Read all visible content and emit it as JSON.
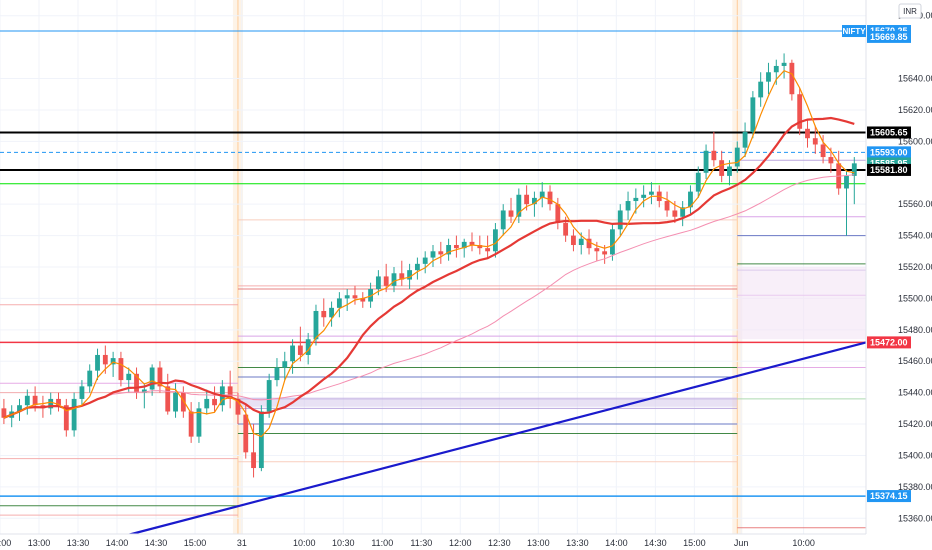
{
  "chart_data": {
    "type": "candlestick",
    "currency": "INR",
    "symbol_tag": "NIFTY",
    "ylim": [
      15350,
      15690
    ],
    "xlim": [
      0,
      111
    ],
    "y_ticks": [
      "15680.00",
      "15640.00",
      "15620.00",
      "15600.00",
      "15560.00",
      "15540.00",
      "15520.00",
      "15500.00",
      "15480.00",
      "15460.00",
      "15440.00",
      "15420.00",
      "15400.00",
      "15380.00",
      "15360.00"
    ],
    "y_tick_values": [
      15680,
      15640,
      15620,
      15600,
      15560,
      15540,
      15520,
      15500,
      15480,
      15460,
      15440,
      15420,
      15400,
      15380,
      15360
    ],
    "x_ticks": [
      {
        "label": "12:00",
        "x": 0
      },
      {
        "label": "13:00",
        "x": 5
      },
      {
        "label": "13:30",
        "x": 10
      },
      {
        "label": "14:00",
        "x": 15
      },
      {
        "label": "14:30",
        "x": 20
      },
      {
        "label": "15:00",
        "x": 25
      },
      {
        "label": "31",
        "x": 31
      },
      {
        "label": "10:00",
        "x": 39
      },
      {
        "label": "10:30",
        "x": 44
      },
      {
        "label": "11:00",
        "x": 49
      },
      {
        "label": "11:30",
        "x": 54
      },
      {
        "label": "12:00",
        "x": 59
      },
      {
        "label": "12:30",
        "x": 64
      },
      {
        "label": "13:00",
        "x": 69
      },
      {
        "label": "13:30",
        "x": 74
      },
      {
        "label": "14:00",
        "x": 79
      },
      {
        "label": "14:30",
        "x": 84
      },
      {
        "label": "15:00",
        "x": 89
      },
      {
        "label": "Jun",
        "x": 95
      },
      {
        "label": "10:00",
        "x": 103
      }
    ],
    "session_breaks": [
      30.5,
      94.5
    ],
    "price_tags": [
      {
        "label": "15670.25",
        "value": 15670.25,
        "color": "#2196f3",
        "text_color": "#ffffff"
      },
      {
        "label": "15669.85",
        "value": 15666.5,
        "color": "#2196f3",
        "text_color": "#ffffff"
      },
      {
        "label": "15605.65",
        "value": 15605.65,
        "color": "#000000",
        "text_color": "#ffffff"
      },
      {
        "label": "15593.00",
        "value": 15593.0,
        "color": "#2196f3",
        "text_color": "#ffffff"
      },
      {
        "label": "15585.95",
        "value": 15585.95,
        "color": "#26a69a",
        "text_color": "#ffffff"
      },
      {
        "label": "15581.80",
        "value": 15581.8,
        "color": "#000000",
        "text_color": "#ffffff"
      },
      {
        "label": "15472.00",
        "value": 15472.0,
        "color": "#f23645",
        "text_color": "#ffffff"
      },
      {
        "label": "15374.15",
        "value": 15374.15,
        "color": "#2196f3",
        "text_color": "#ffffff"
      }
    ],
    "levels": [
      {
        "value": 15670.25,
        "color": "#2196f3",
        "width": 1,
        "dash": false,
        "from": 0
      },
      {
        "value": 15605.65,
        "color": "#000000",
        "width": 2,
        "dash": false,
        "from": 0
      },
      {
        "value": 15593.0,
        "color": "#2196f3",
        "width": 1,
        "dash": true,
        "from": 0
      },
      {
        "value": 15581.8,
        "color": "#000000",
        "width": 2,
        "dash": false,
        "from": 0
      },
      {
        "value": 15573.0,
        "color": "#00e600",
        "width": 1,
        "dash": false,
        "from": 0
      },
      {
        "value": 15472.0,
        "color": "#f23645",
        "width": 1.5,
        "dash": false,
        "from": 0
      },
      {
        "value": 15374.15,
        "color": "#2196f3",
        "width": 1.5,
        "dash": false,
        "from": 0
      }
    ],
    "candles": [
      {
        "o": 15430,
        "h": 15436,
        "l": 15420,
        "c": 15424
      },
      {
        "o": 15424,
        "h": 15432,
        "l": 15418,
        "c": 15428
      },
      {
        "o": 15428,
        "h": 15436,
        "l": 15422,
        "c": 15432
      },
      {
        "o": 15432,
        "h": 15442,
        "l": 15426,
        "c": 15438
      },
      {
        "o": 15438,
        "h": 15444,
        "l": 15428,
        "c": 15432
      },
      {
        "o": 15432,
        "h": 15438,
        "l": 15424,
        "c": 15430
      },
      {
        "o": 15430,
        "h": 15440,
        "l": 15426,
        "c": 15436
      },
      {
        "o": 15436,
        "h": 15440,
        "l": 15428,
        "c": 15432
      },
      {
        "o": 15432,
        "h": 15436,
        "l": 15412,
        "c": 15416
      },
      {
        "o": 15416,
        "h": 15440,
        "l": 15412,
        "c": 15436
      },
      {
        "o": 15436,
        "h": 15448,
        "l": 15432,
        "c": 15444
      },
      {
        "o": 15444,
        "h": 15458,
        "l": 15440,
        "c": 15454
      },
      {
        "o": 15454,
        "h": 15468,
        "l": 15448,
        "c": 15464
      },
      {
        "o": 15464,
        "h": 15470,
        "l": 15452,
        "c": 15458
      },
      {
        "o": 15458,
        "h": 15466,
        "l": 15450,
        "c": 15462
      },
      {
        "o": 15462,
        "h": 15466,
        "l": 15444,
        "c": 15448
      },
      {
        "o": 15448,
        "h": 15456,
        "l": 15440,
        "c": 15452
      },
      {
        "o": 15452,
        "h": 15456,
        "l": 15436,
        "c": 15440
      },
      {
        "o": 15440,
        "h": 15446,
        "l": 15430,
        "c": 15442
      },
      {
        "o": 15442,
        "h": 15458,
        "l": 15438,
        "c": 15456
      },
      {
        "o": 15456,
        "h": 15460,
        "l": 15440,
        "c": 15444
      },
      {
        "o": 15444,
        "h": 15452,
        "l": 15426,
        "c": 15428
      },
      {
        "o": 15428,
        "h": 15446,
        "l": 15424,
        "c": 15440
      },
      {
        "o": 15440,
        "h": 15444,
        "l": 15424,
        "c": 15428
      },
      {
        "o": 15428,
        "h": 15434,
        "l": 15408,
        "c": 15412
      },
      {
        "o": 15412,
        "h": 15434,
        "l": 15408,
        "c": 15430
      },
      {
        "o": 15430,
        "h": 15442,
        "l": 15426,
        "c": 15436
      },
      {
        "o": 15436,
        "h": 15444,
        "l": 15428,
        "c": 15432
      },
      {
        "o": 15432,
        "h": 15448,
        "l": 15428,
        "c": 15444
      },
      {
        "o": 15444,
        "h": 15454,
        "l": 15430,
        "c": 15436
      },
      {
        "o": 15436,
        "h": 15440,
        "l": 15420,
        "c": 15426
      },
      {
        "o": 15426,
        "h": 15432,
        "l": 15398,
        "c": 15402
      },
      {
        "o": 15402,
        "h": 15420,
        "l": 15386,
        "c": 15392
      },
      {
        "o": 15392,
        "h": 15432,
        "l": 15390,
        "c": 15428
      },
      {
        "o": 15428,
        "h": 15452,
        "l": 15424,
        "c": 15448
      },
      {
        "o": 15448,
        "h": 15462,
        "l": 15444,
        "c": 15456
      },
      {
        "o": 15456,
        "h": 15466,
        "l": 15448,
        "c": 15460
      },
      {
        "o": 15460,
        "h": 15474,
        "l": 15452,
        "c": 15470
      },
      {
        "o": 15470,
        "h": 15482,
        "l": 15460,
        "c": 15464
      },
      {
        "o": 15464,
        "h": 15478,
        "l": 15458,
        "c": 15474
      },
      {
        "o": 15474,
        "h": 15496,
        "l": 15470,
        "c": 15492
      },
      {
        "o": 15492,
        "h": 15500,
        "l": 15482,
        "c": 15488
      },
      {
        "o": 15488,
        "h": 15498,
        "l": 15482,
        "c": 15494
      },
      {
        "o": 15494,
        "h": 15504,
        "l": 15488,
        "c": 15500
      },
      {
        "o": 15500,
        "h": 15506,
        "l": 15492,
        "c": 15502
      },
      {
        "o": 15502,
        "h": 15508,
        "l": 15496,
        "c": 15500
      },
      {
        "o": 15500,
        "h": 15504,
        "l": 15494,
        "c": 15498
      },
      {
        "o": 15498,
        "h": 15510,
        "l": 15494,
        "c": 15506
      },
      {
        "o": 15506,
        "h": 15518,
        "l": 15502,
        "c": 15514
      },
      {
        "o": 15514,
        "h": 15522,
        "l": 15504,
        "c": 15508
      },
      {
        "o": 15508,
        "h": 15520,
        "l": 15504,
        "c": 15516
      },
      {
        "o": 15516,
        "h": 15524,
        "l": 15508,
        "c": 15512
      },
      {
        "o": 15512,
        "h": 15522,
        "l": 15506,
        "c": 15518
      },
      {
        "o": 15518,
        "h": 15526,
        "l": 15512,
        "c": 15522
      },
      {
        "o": 15522,
        "h": 15530,
        "l": 15516,
        "c": 15526
      },
      {
        "o": 15526,
        "h": 15534,
        "l": 15520,
        "c": 15530
      },
      {
        "o": 15530,
        "h": 15536,
        "l": 15522,
        "c": 15528
      },
      {
        "o": 15528,
        "h": 15538,
        "l": 15524,
        "c": 15534
      },
      {
        "o": 15534,
        "h": 15540,
        "l": 15526,
        "c": 15532
      },
      {
        "o": 15532,
        "h": 15538,
        "l": 15526,
        "c": 15536
      },
      {
        "o": 15536,
        "h": 15542,
        "l": 15530,
        "c": 15534
      },
      {
        "o": 15534,
        "h": 15540,
        "l": 15528,
        "c": 15532
      },
      {
        "o": 15532,
        "h": 15540,
        "l": 15526,
        "c": 15530
      },
      {
        "o": 15530,
        "h": 15548,
        "l": 15526,
        "c": 15544
      },
      {
        "o": 15544,
        "h": 15560,
        "l": 15540,
        "c": 15556
      },
      {
        "o": 15556,
        "h": 15564,
        "l": 15548,
        "c": 15552
      },
      {
        "o": 15552,
        "h": 15570,
        "l": 15548,
        "c": 15566
      },
      {
        "o": 15566,
        "h": 15572,
        "l": 15556,
        "c": 15560
      },
      {
        "o": 15560,
        "h": 15568,
        "l": 15552,
        "c": 15564
      },
      {
        "o": 15564,
        "h": 15574,
        "l": 15558,
        "c": 15568
      },
      {
        "o": 15568,
        "h": 15572,
        "l": 15556,
        "c": 15560
      },
      {
        "o": 15560,
        "h": 15564,
        "l": 15544,
        "c": 15548
      },
      {
        "o": 15548,
        "h": 15552,
        "l": 15536,
        "c": 15540
      },
      {
        "o": 15540,
        "h": 15544,
        "l": 15530,
        "c": 15534
      },
      {
        "o": 15534,
        "h": 15542,
        "l": 15528,
        "c": 15538
      },
      {
        "o": 15538,
        "h": 15544,
        "l": 15528,
        "c": 15532
      },
      {
        "o": 15532,
        "h": 15536,
        "l": 15524,
        "c": 15530
      },
      {
        "o": 15530,
        "h": 15534,
        "l": 15522,
        "c": 15528
      },
      {
        "o": 15528,
        "h": 15548,
        "l": 15524,
        "c": 15544
      },
      {
        "o": 15544,
        "h": 15560,
        "l": 15540,
        "c": 15556
      },
      {
        "o": 15556,
        "h": 15568,
        "l": 15550,
        "c": 15562
      },
      {
        "o": 15562,
        "h": 15570,
        "l": 15554,
        "c": 15564
      },
      {
        "o": 15564,
        "h": 15572,
        "l": 15558,
        "c": 15566
      },
      {
        "o": 15566,
        "h": 15574,
        "l": 15560,
        "c": 15568
      },
      {
        "o": 15568,
        "h": 15572,
        "l": 15558,
        "c": 15562
      },
      {
        "o": 15562,
        "h": 15568,
        "l": 15552,
        "c": 15556
      },
      {
        "o": 15556,
        "h": 15562,
        "l": 15548,
        "c": 15552
      },
      {
        "o": 15552,
        "h": 15562,
        "l": 15546,
        "c": 15558
      },
      {
        "o": 15558,
        "h": 15572,
        "l": 15554,
        "c": 15568
      },
      {
        "o": 15568,
        "h": 15584,
        "l": 15564,
        "c": 15580
      },
      {
        "o": 15580,
        "h": 15598,
        "l": 15576,
        "c": 15594
      },
      {
        "o": 15594,
        "h": 15606,
        "l": 15584,
        "c": 15588
      },
      {
        "o": 15588,
        "h": 15594,
        "l": 15574,
        "c": 15578
      },
      {
        "o": 15578,
        "h": 15588,
        "l": 15572,
        "c": 15584
      },
      {
        "o": 15584,
        "h": 15600,
        "l": 15580,
        "c": 15596
      },
      {
        "o": 15596,
        "h": 15612,
        "l": 15590,
        "c": 15606
      },
      {
        "o": 15606,
        "h": 15632,
        "l": 15602,
        "c": 15628
      },
      {
        "o": 15628,
        "h": 15644,
        "l": 15622,
        "c": 15638
      },
      {
        "o": 15638,
        "h": 15650,
        "l": 15630,
        "c": 15644
      },
      {
        "o": 15644,
        "h": 15652,
        "l": 15636,
        "c": 15648
      },
      {
        "o": 15648,
        "h": 15656,
        "l": 15640,
        "c": 15650
      },
      {
        "o": 15650,
        "h": 15652,
        "l": 15626,
        "c": 15630
      },
      {
        "o": 15630,
        "h": 15634,
        "l": 15604,
        "c": 15608
      },
      {
        "o": 15608,
        "h": 15614,
        "l": 15596,
        "c": 15602
      },
      {
        "o": 15602,
        "h": 15610,
        "l": 15592,
        "c": 15598
      },
      {
        "o": 15598,
        "h": 15604,
        "l": 15586,
        "c": 15590
      },
      {
        "o": 15590,
        "h": 15596,
        "l": 15580,
        "c": 15586
      },
      {
        "o": 15586,
        "h": 15594,
        "l": 15566,
        "c": 15570
      },
      {
        "o": 15570,
        "h": 15582,
        "l": 15540,
        "c": 15578
      },
      {
        "o": 15578,
        "h": 15590,
        "l": 15560,
        "c": 15586
      }
    ]
  }
}
